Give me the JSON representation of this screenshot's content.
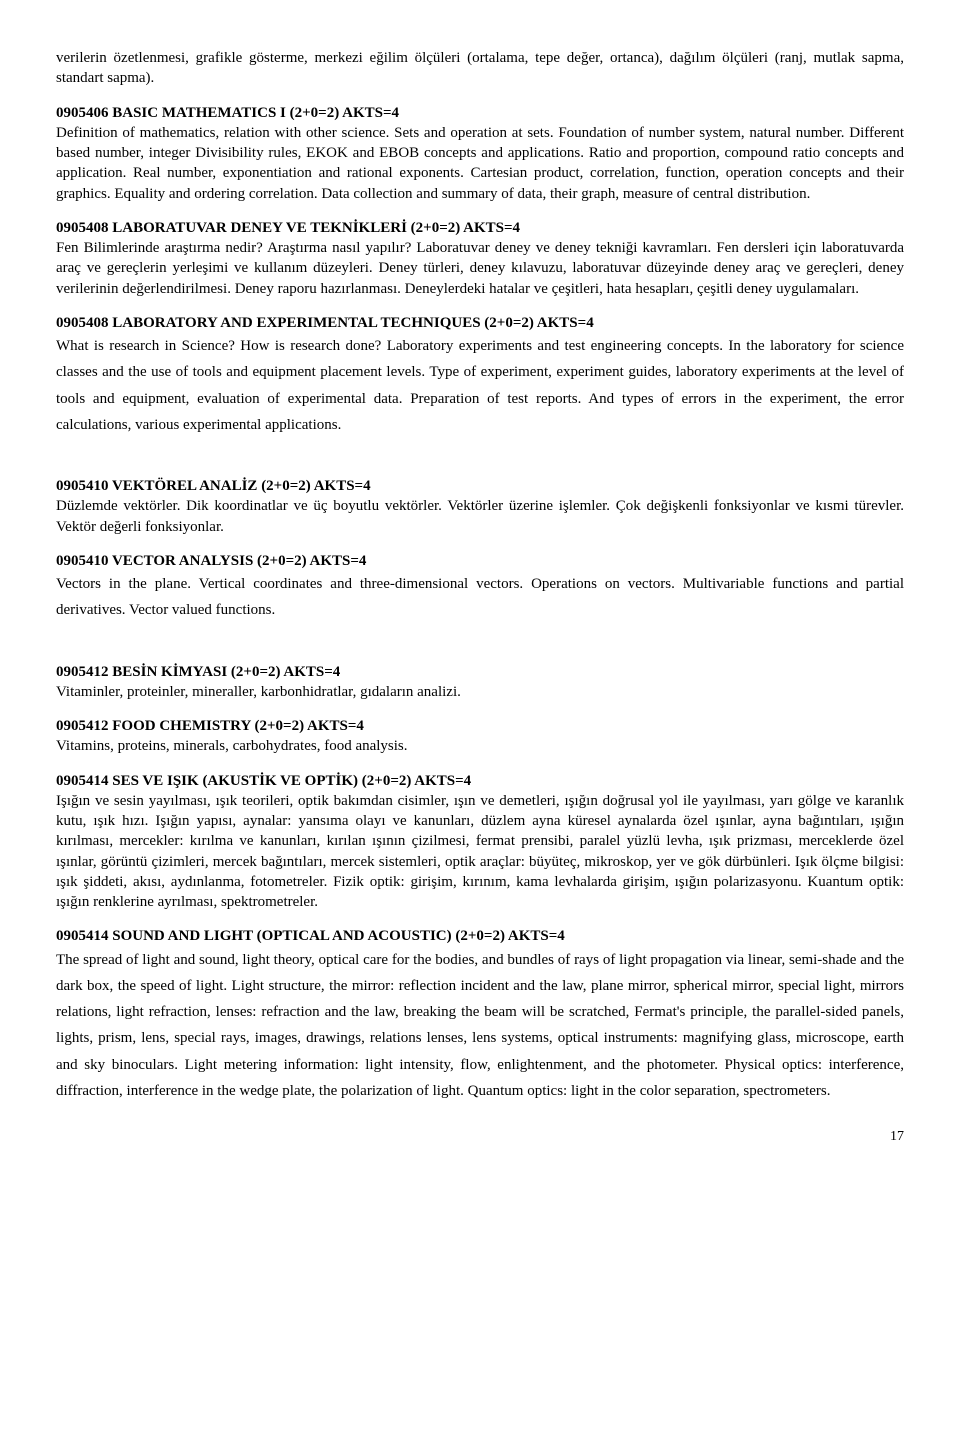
{
  "pageNumber": "17",
  "intro": {
    "text": "verilerin özetlenmesi, grafikle gösterme, merkezi eğilim ölçüleri (ortalama, tepe değer, ortanca), dağılım ölçüleri (ranj, mutlak sapma, standart sapma)."
  },
  "courses": [
    {
      "title": "0905406 BASIC MATHEMATICS I (2+0=2)  AKTS=4",
      "body": "Definition of mathematics, relation with other science. Sets and operation at sets. Foundation of number system, natural number. Different based number, integer Divisibility rules, EKOK and EBOB concepts and applications. Ratio and proportion, compound ratio concepts and application. Real number, exponentiation and rational exponents. Cartesian product, correlation, function, operation concepts and their graphics. Equality and ordering correlation. Data collection and summary of data, their graph, measure of central distribution.",
      "loose": false
    },
    {
      "title": "0905408 LABORATUVAR DENEY VE TEKNİKLERİ (2+0=2)     AKTS=4",
      "body": "Fen Bilimlerinde araştırma nedir? Araştırma nasıl yapılır? Laboratuvar  deney ve deney tekniği kavramları. Fen dersleri için laboratuvarda araç ve gereçlerin yerleşimi ve kullanım düzeyleri. Deney türleri, deney kılavuzu, laboratuvar düzeyinde deney araç ve gereçleri, deney verilerinin değerlendirilmesi. Deney raporu hazırlanması. Deneylerdeki hatalar ve çeşitleri, hata hesapları, çeşitli deney uygulamaları.",
      "loose": false
    },
    {
      "title": "0905408 LABORATORY AND EXPERIMENTAL TECHNIQUES (2+0=2)  AKTS=4",
      "body": "What is research in Science? How is research done? Laboratory experiments and test engineering concepts. In the laboratory for science classes and the use of tools and equipment placement levels. Type of experiment, experiment guides, laboratory experiments at the level of tools and equipment, evaluation of experimental data. Preparation of test reports. And types of errors in the experiment, the error calculations, various experimental applications.",
      "loose": true
    },
    {
      "title": "0905410 VEKTÖREL ANALİZ (2+0=2)   AKTS=4",
      "body": "Düzlemde vektörler. Dik koordinatlar ve üç boyutlu vektörler. Vektörler üzerine işlemler. Çok değişkenli fonksiyonlar ve kısmi türevler. Vektör değerli fonksiyonlar.",
      "loose": false
    },
    {
      "title": "0905410 VECTOR ANALYSIS (2+0=2)   AKTS=4",
      "body": "Vectors in the plane. Vertical coordinates and three-dimensional vectors. Operations on vectors. Multivariable functions and partial derivatives. Vector valued functions.",
      "loose": true
    },
    {
      "title": "0905412 BESİN KİMYASI (2+0=2)     AKTS=4",
      "body": "Vitaminler, proteinler, mineraller, karbonhidratlar, gıdaların analizi.",
      "loose": false
    },
    {
      "title": "0905412 FOOD CHEMISTRY (2+0=2)    AKTS=4",
      "body": "Vitamins, proteins, minerals, carbohydrates, food analysis.",
      "loose": false
    },
    {
      "title": "0905414 SES VE IŞIK (AKUSTİK VE OPTİK) (2+0=2)    AKTS=4",
      "body": "Işığın  ve sesin yayılması, ışık teorileri, optik bakımdan cisimler, ışın ve demetleri, ışığın doğrusal yol ile yayılması, yarı gölge ve karanlık kutu, ışık hızı. Işığın yapısı, aynalar: yansıma olayı ve kanunları, düzlem ayna küresel aynalarda özel ışınlar, ayna bağıntıları, ışığın kırılması, mercekler: kırılma ve kanunları, kırılan ışının çizilmesi, fermat prensibi, paralel yüzlü levha, ışık prizması, merceklerde özel ışınlar, görüntü çizimleri, mercek bağıntıları, mercek sistemleri, optik araçlar: büyüteç, mikroskop, yer ve gök dürbünleri. Işık ölçme bilgisi: ışık şiddeti, akısı, aydınlanma, fotometreler. Fizik optik: girişim, kırınım, kama levhalarda girişim, ışığın polarizasyonu. Kuantum optik: ışığın renklerine ayrılması, spektrometreler.",
      "loose": false
    },
    {
      "title": "0905414 SOUND AND LIGHT (OPTICAL AND ACOUSTIC) (2+0=2)     AKTS=4",
      "body": "The spread of light and sound, light theory, optical care for the bodies, and bundles of rays of light propagation via linear, semi-shade and the dark box, the speed of light. Light structure, the mirror: reflection incident and the law, plane mirror, spherical mirror, special light, mirrors relations, light refraction, lenses: refraction and the law, breaking the beam will be scratched, Fermat's principle, the parallel-sided panels, lights, prism, lens, special rays, images, drawings, relations lenses, lens systems, optical instruments: magnifying glass, microscope, earth and sky binoculars. Light metering information: light intensity, flow, enlightenment, and the photometer. Physical optics: interference, diffraction, interference in the wedge plate, the polarization of light. Quantum optics: light in the color separation, spectrometers.",
      "loose": true
    }
  ]
}
